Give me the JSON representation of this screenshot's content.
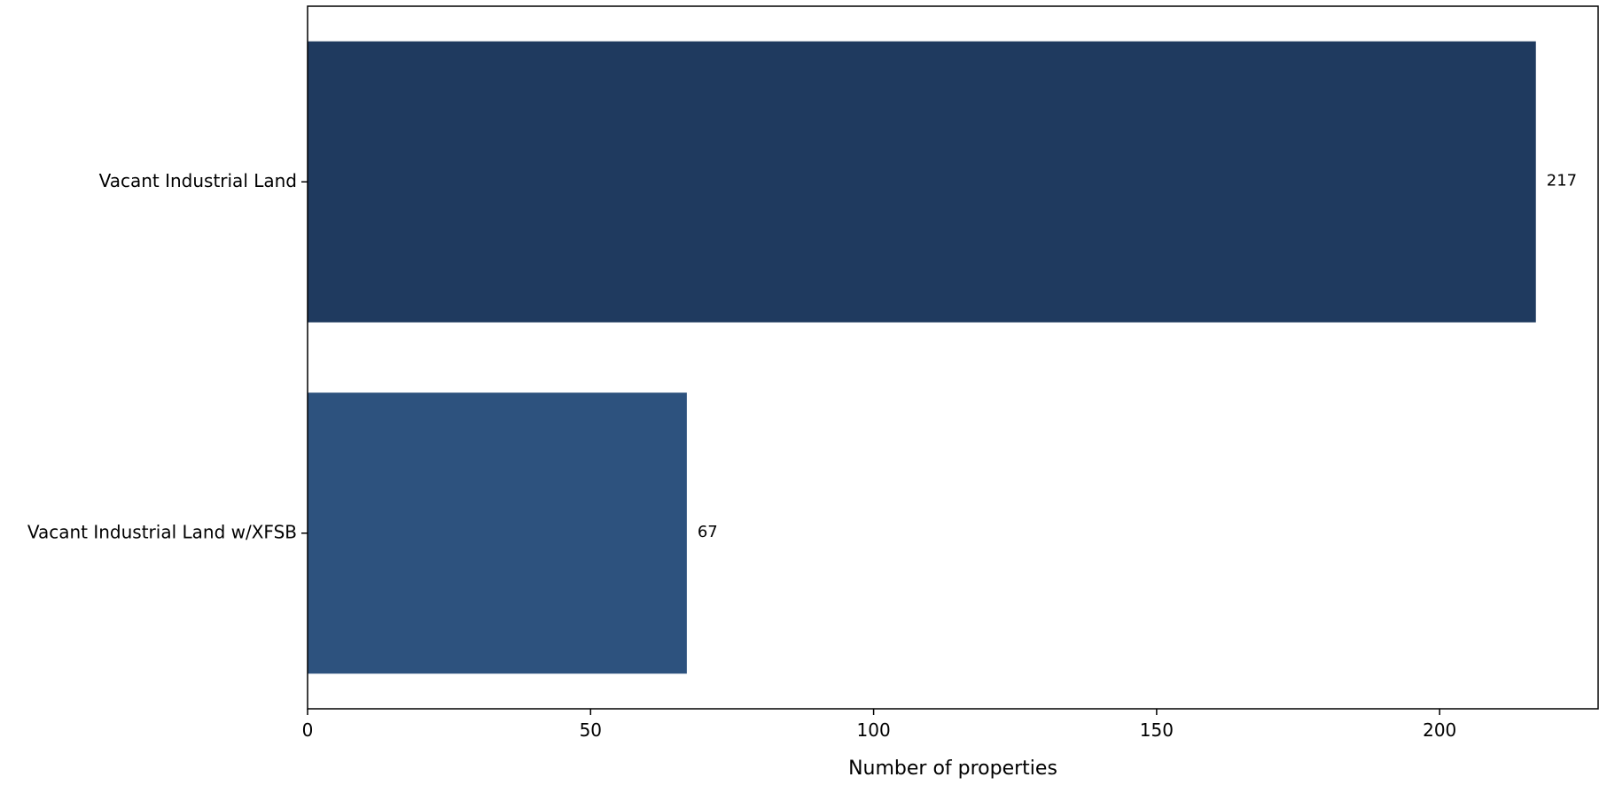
{
  "chart_data": {
    "type": "bar",
    "orientation": "horizontal",
    "categories": [
      "Vacant Industrial Land",
      "Vacant Industrial Land w/XFSB"
    ],
    "values": [
      217,
      67
    ],
    "data_labels": [
      "217",
      "67"
    ],
    "colors": [
      "#1f3a5f",
      "#2d527e"
    ],
    "xlabel": "Number of properties",
    "ylabel": "",
    "title": "",
    "xlim": [
      0,
      228
    ],
    "xticks": [
      0,
      50,
      100,
      150,
      200
    ],
    "xtick_labels": [
      "0",
      "50",
      "100",
      "150",
      "200"
    ],
    "grid": false,
    "legend": "none"
  }
}
